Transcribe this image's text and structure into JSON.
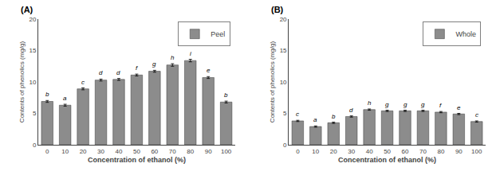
{
  "chart_data": [
    {
      "type": "bar",
      "title": "(A)",
      "categories": [
        0,
        10,
        20,
        30,
        40,
        50,
        60,
        70,
        80,
        90,
        100
      ],
      "series": [
        {
          "name": "Peel",
          "color": "#8c8c8c",
          "values": [
            6.9,
            6.3,
            8.9,
            10.3,
            10.4,
            11.1,
            11.7,
            12.7,
            13.4,
            10.7,
            6.8
          ],
          "errors": [
            0.15,
            0.15,
            0.15,
            0.15,
            0.15,
            0.15,
            0.15,
            0.2,
            0.2,
            0.15,
            0.15
          ],
          "letters": [
            "b",
            "a",
            "c",
            "d",
            "d",
            "f",
            "g",
            "h",
            "i",
            "e",
            "b"
          ]
        }
      ],
      "xlabel": "Concentration of ethanol (%)",
      "ylabel": "Contents of phenolics (mg/g)",
      "ylim": [
        0,
        20
      ],
      "yticks": [
        0,
        5,
        10,
        15,
        20
      ],
      "legend": "upper right",
      "grid": false
    },
    {
      "type": "bar",
      "title": "(B)",
      "categories": [
        0,
        10,
        20,
        30,
        40,
        50,
        60,
        70,
        80,
        90,
        100
      ],
      "series": [
        {
          "name": "Whole",
          "color": "#8c8c8c",
          "values": [
            3.8,
            2.9,
            3.5,
            4.5,
            5.6,
            5.4,
            5.4,
            5.4,
            5.2,
            4.9,
            3.7
          ],
          "errors": [
            0.1,
            0.1,
            0.1,
            0.1,
            0.1,
            0.1,
            0.1,
            0.1,
            0.1,
            0.1,
            0.1
          ],
          "letters": [
            "c",
            "a",
            "b",
            "d",
            "h",
            "g",
            "g",
            "g",
            "f",
            "e",
            "c"
          ]
        }
      ],
      "xlabel": "Concentration of ethanol (%)",
      "ylabel": "Contents of phenolics (mg/g)",
      "ylim": [
        0,
        20
      ],
      "yticks": [
        0,
        5,
        10,
        15,
        20
      ],
      "legend": "upper right",
      "grid": false
    }
  ]
}
